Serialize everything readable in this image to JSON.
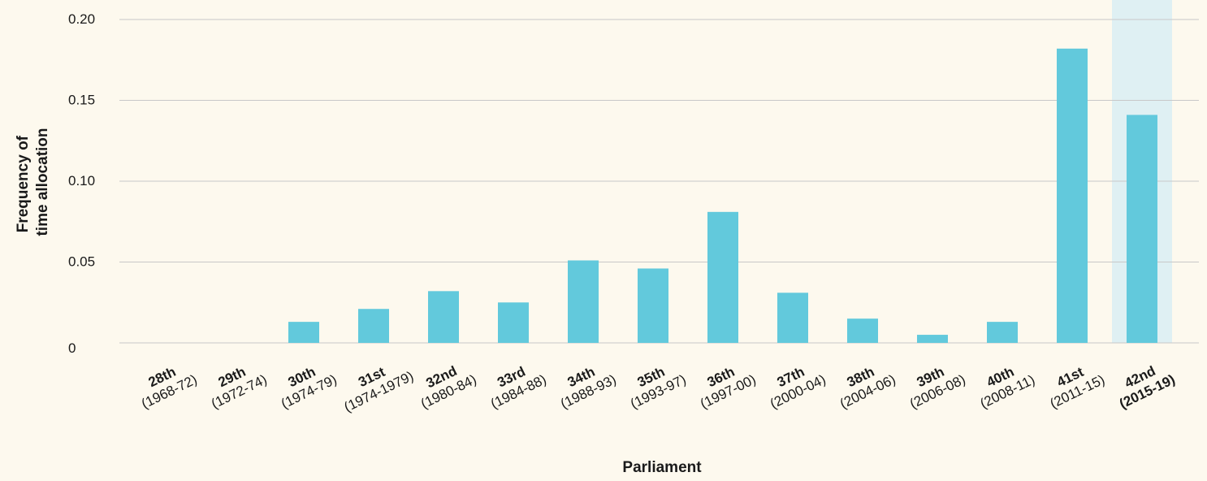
{
  "colors": {
    "background": "#fdf9ee",
    "bar": "#62c9dc",
    "highlight_band": "#dff0f3",
    "gridline": "#c8c8c8",
    "text": "#1a1a1a"
  },
  "chart_data": {
    "type": "bar",
    "title": "",
    "xlabel": "Parliament",
    "ylabel": "Frequency of time allocation",
    "ylabel_lines": [
      "Frequency of",
      "time allocation"
    ],
    "ylim": [
      0,
      0.2
    ],
    "yticks": [
      0,
      0.05,
      0.1,
      0.15,
      0.2
    ],
    "ytick_labels": [
      "0",
      "0.05",
      "0.10",
      "0.15",
      "0.20"
    ],
    "grid": true,
    "highlighted_category": "42nd",
    "categories": [
      {
        "name": "28th",
        "years": "(1968-72)",
        "value": 0
      },
      {
        "name": "29th",
        "years": "(1972-74)",
        "value": 0
      },
      {
        "name": "30th",
        "years": "(1974-79)",
        "value": 0.013
      },
      {
        "name": "31st",
        "years": "(1974-1979)",
        "value": 0.021
      },
      {
        "name": "32nd",
        "years": "(1980-84)",
        "value": 0.032
      },
      {
        "name": "33rd",
        "years": "(1984-88)",
        "value": 0.025
      },
      {
        "name": "34th",
        "years": "(1988-93)",
        "value": 0.051
      },
      {
        "name": "35th",
        "years": "(1993-97)",
        "value": 0.046
      },
      {
        "name": "36th",
        "years": "(1997-00)",
        "value": 0.081
      },
      {
        "name": "37th",
        "years": "(2000-04)",
        "value": 0.031
      },
      {
        "name": "38th",
        "years": "(2004-06)",
        "value": 0.015
      },
      {
        "name": "39th",
        "years": "(2006-08)",
        "value": 0.005
      },
      {
        "name": "40th",
        "years": "(2008-11)",
        "value": 0.013
      },
      {
        "name": "41st",
        "years": "(2011-15)",
        "value": 0.182
      },
      {
        "name": "42nd",
        "years": "(2015-19)",
        "value": 0.141
      }
    ]
  }
}
